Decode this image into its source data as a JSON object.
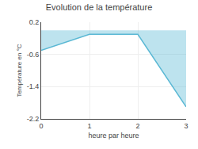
{
  "chart_data": {
    "type": "area",
    "title": "Evolution de la température",
    "xlabel": "heure par heure",
    "ylabel": "Température en °C",
    "x": [
      0,
      1,
      2,
      3
    ],
    "values": [
      -0.5,
      -0.1,
      -0.1,
      -1.9
    ],
    "color": "#5ab8d4",
    "xlim": [
      0,
      3
    ],
    "xticks": [
      0,
      1,
      2,
      3
    ],
    "ylim": [
      -2.2,
      0.2
    ],
    "yticks": [
      0.2,
      -0.6,
      -1.4,
      -2.2
    ],
    "grid": true
  }
}
